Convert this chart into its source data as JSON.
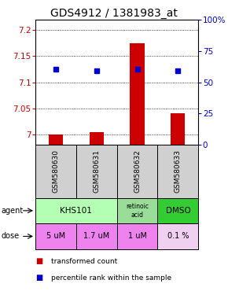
{
  "title": "GDS4912 / 1381983_at",
  "samples": [
    "GSM580630",
    "GSM580631",
    "GSM580632",
    "GSM580633"
  ],
  "red_values": [
    7.0,
    7.005,
    7.175,
    7.04
  ],
  "blue_values": [
    7.125,
    7.122,
    7.125,
    7.122
  ],
  "ylim_left": [
    6.98,
    7.22
  ],
  "ylim_right": [
    0,
    100
  ],
  "yticks_left": [
    7.0,
    7.05,
    7.1,
    7.15,
    7.2
  ],
  "yticks_right": [
    0,
    25,
    50,
    75,
    100
  ],
  "ytick_labels_left": [
    "7",
    "7.05",
    "7.1",
    "7.15",
    "7.2"
  ],
  "ytick_labels_right": [
    "0",
    "25",
    "50",
    "75",
    "100%"
  ],
  "agent_texts": [
    "KHS101",
    "retinoic\nacid",
    "DMSO"
  ],
  "agent_colors": [
    "#b3ffb3",
    "#99dd99",
    "#33cc33"
  ],
  "dose_labels": [
    "5 uM",
    "1.7 uM",
    "1 uM",
    "0.1 %"
  ],
  "dose_colors_list": [
    "#ee82ee",
    "#ee82ee",
    "#ee82ee",
    "#f0d0f0"
  ],
  "sample_bg_color": "#d0d0d0",
  "red_color": "#cc0000",
  "blue_color": "#0000cc",
  "title_fontsize": 10,
  "tick_fontsize": 7.5,
  "sample_fontsize": 6.5,
  "agent_fontsize": 7.5,
  "dose_fontsize": 7,
  "legend_fontsize": 6.5,
  "side_label_fontsize": 7
}
